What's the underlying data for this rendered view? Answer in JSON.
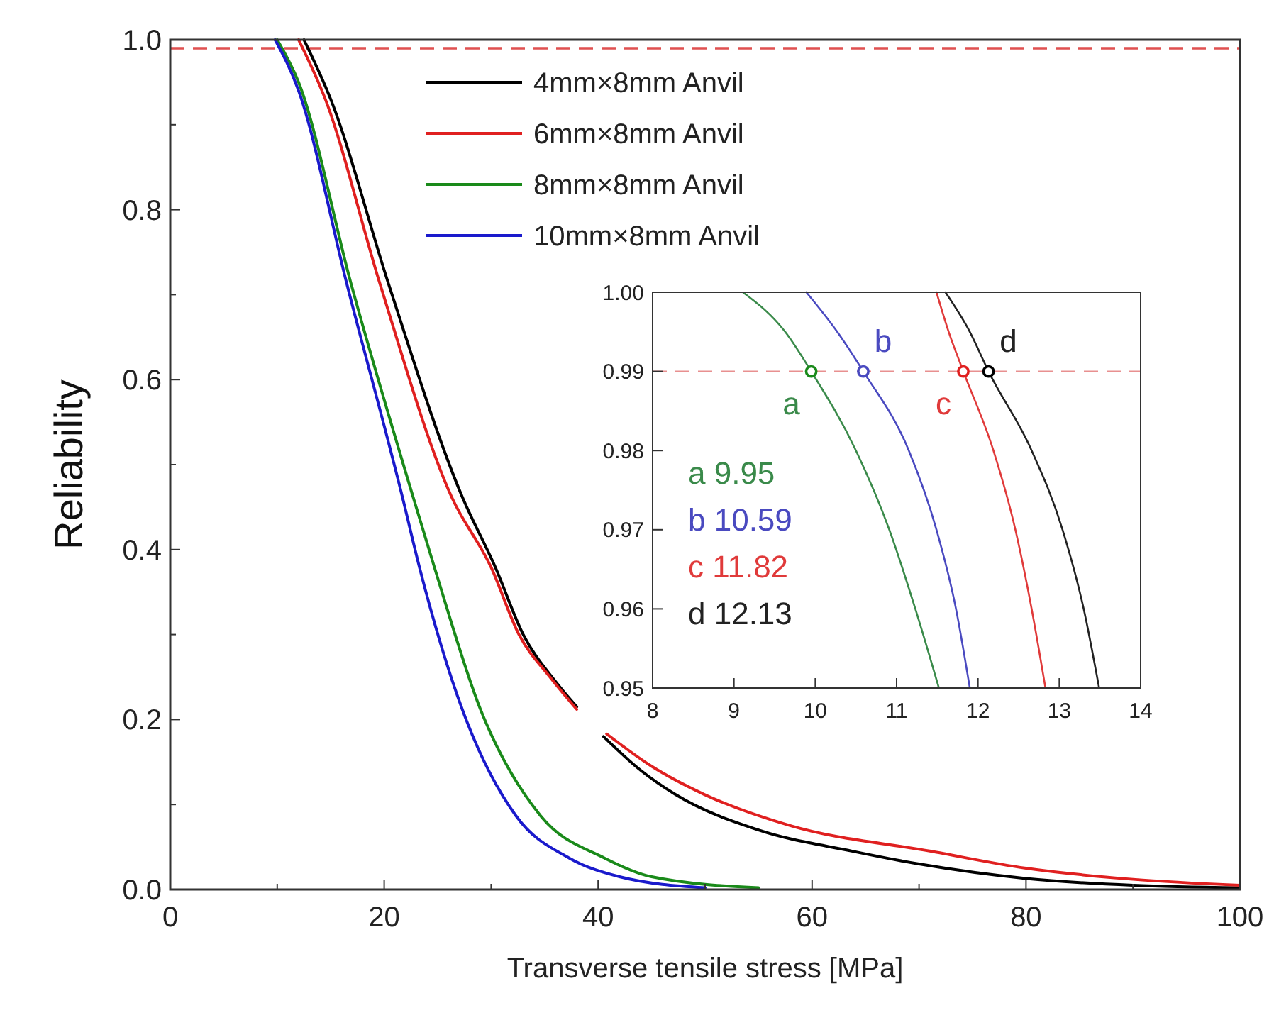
{
  "chart_data": [
    {
      "type": "line",
      "xlabel": "Transverse tensile stress [MPa]",
      "ylabel": "Reliability",
      "xlim": [
        0,
        100
      ],
      "ylim": [
        0,
        1
      ],
      "xticks": [
        0,
        {
          "value": 10,
          "label": null
        },
        20,
        {
          "value": 30,
          "label": null
        },
        40,
        {
          "value": 50,
          "label": null
        },
        60,
        {
          "value": 70,
          "label": null
        },
        80,
        {
          "value": 90,
          "label": null
        },
        100
      ],
      "yticks": [
        {
          "value": 0,
          "label": "0.0"
        },
        {
          "value": 0.1,
          "label": null
        },
        0.2,
        {
          "value": 0.3,
          "label": null
        },
        0.4,
        {
          "value": 0.5,
          "label": null
        },
        0.6,
        {
          "value": 0.7,
          "label": null
        },
        0.8,
        {
          "value": 0.9,
          "label": null
        },
        {
          "value": 1,
          "label": "1.0"
        }
      ],
      "legend": "top",
      "line_style": "solid",
      "ref_lines": [
        {
          "axis": "y",
          "value": 0.99,
          "color": "#e05050",
          "line_style": "dashed"
        }
      ],
      "series": [
        {
          "name": "4mm×8mm Anvil",
          "color": "#000000",
          "x": [
            12.5,
            15,
            20.4,
            27.3,
            30.4,
            33,
            36,
            38,
            39,
            40.5,
            44,
            47.2,
            55,
            63.8,
            70,
            80,
            90,
            100
          ],
          "values": [
            1,
            0.93,
            0.713,
            0.462,
            0.379,
            0.3,
            0.245,
            0.215,
            null,
            0.18,
            0.14,
            0.112,
            0.07,
            0.045,
            0.03,
            0.013,
            0.005,
            0.002
          ]
        },
        {
          "name": "6mm×8mm Anvil",
          "color": "#e02020",
          "x": [
            12,
            14.5,
            19.6,
            26.3,
            30,
            32.6,
            35.5,
            38,
            39,
            40.8,
            45,
            49.9,
            58,
            71.1,
            80,
            90,
            100
          ],
          "values": [
            1,
            0.93,
            0.713,
            0.462,
            0.379,
            0.3,
            0.25,
            0.212,
            null,
            0.183,
            0.145,
            0.112,
            0.075,
            0.045,
            0.025,
            0.012,
            0.005
          ]
        },
        {
          "name": "8mm×8mm Anvil",
          "color": "#1a8a1a",
          "x": [
            10,
            12,
            16.9,
            22.7,
            24.7,
            29,
            34.6,
            40.6,
            45,
            55
          ],
          "values": [
            1,
            0.95,
            0.713,
            0.462,
            0.379,
            0.212,
            0.087,
            0.037,
            0.015,
            0.002
          ]
        },
        {
          "name": "10mm×8mm Anvil",
          "color": "#1a1acc",
          "x": [
            9.8,
            12,
            16.5,
            21.7,
            23.3,
            27.3,
            32.3,
            37.3,
            42,
            50
          ],
          "values": [
            1,
            0.94,
            0.713,
            0.462,
            0.379,
            0.212,
            0.087,
            0.037,
            0.015,
            0.002
          ]
        }
      ]
    },
    {
      "type": "line",
      "xlim": [
        8,
        14
      ],
      "ylim": [
        0.95,
        1
      ],
      "xticks": [
        8,
        9,
        10,
        11,
        12,
        13,
        14
      ],
      "yticks": [
        0.95,
        0.96,
        0.97,
        0.98,
        0.99,
        {
          "value": 1,
          "label": "1.00"
        }
      ],
      "line_style": "solid",
      "ref_lines": [
        {
          "axis": "y",
          "value": 0.99,
          "color": "#e89090",
          "line_style": "dashed"
        }
      ],
      "series": [
        {
          "color": "#3a8a4a",
          "x": [
            9.11,
            9.63,
            9.95,
            10.5,
            10.91,
            11.23,
            11.52
          ],
          "values": [
            1,
            0.995,
            0.99,
            0.98,
            0.97,
            0.96,
            0.95
          ]
        },
        {
          "color": "#4a4ac0",
          "x": [
            9.89,
            10.27,
            10.59,
            11.15,
            11.49,
            11.73,
            11.9
          ],
          "values": [
            1,
            0.995,
            0.99,
            0.98,
            0.97,
            0.96,
            0.95
          ]
        },
        {
          "color": "#e03a3a",
          "x": [
            11.49,
            11.64,
            11.82,
            12.19,
            12.46,
            12.66,
            12.83
          ],
          "values": [
            1,
            0.995,
            0.99,
            0.98,
            0.97,
            0.96,
            0.95
          ]
        },
        {
          "color": "#222222",
          "x": [
            11.6,
            11.9,
            12.13,
            12.66,
            13.04,
            13.3,
            13.49
          ],
          "values": [
            1,
            0.995,
            0.99,
            0.98,
            0.97,
            0.96,
            0.95
          ]
        },
        {
          "type": "scatter",
          "marker": "circle",
          "color": "#1a8a1a",
          "x": [
            9.95
          ],
          "values": [
            0.99
          ]
        },
        {
          "type": "scatter",
          "marker": "circle",
          "color": "#4a4ac0",
          "x": [
            10.59
          ],
          "values": [
            0.99
          ]
        },
        {
          "type": "scatter",
          "marker": "circle",
          "color": "#e02020",
          "x": [
            11.82
          ],
          "values": [
            0.99
          ]
        },
        {
          "type": "scatter",
          "marker": "circle",
          "color": "#000000",
          "x": [
            12.13
          ],
          "values": [
            0.99
          ]
        }
      ],
      "annotations": [
        {
          "text": "a",
          "x": 9.95,
          "y": 0.99
        },
        {
          "text": "b",
          "x": 10.59,
          "y": 0.99
        },
        {
          "text": "c",
          "x": 11.82,
          "y": 0.99
        },
        {
          "text": "d",
          "x": 12.13,
          "y": 0.99
        },
        "a 9.95",
        "b 10.59",
        "c 11.82",
        "d 12.13"
      ]
    }
  ]
}
